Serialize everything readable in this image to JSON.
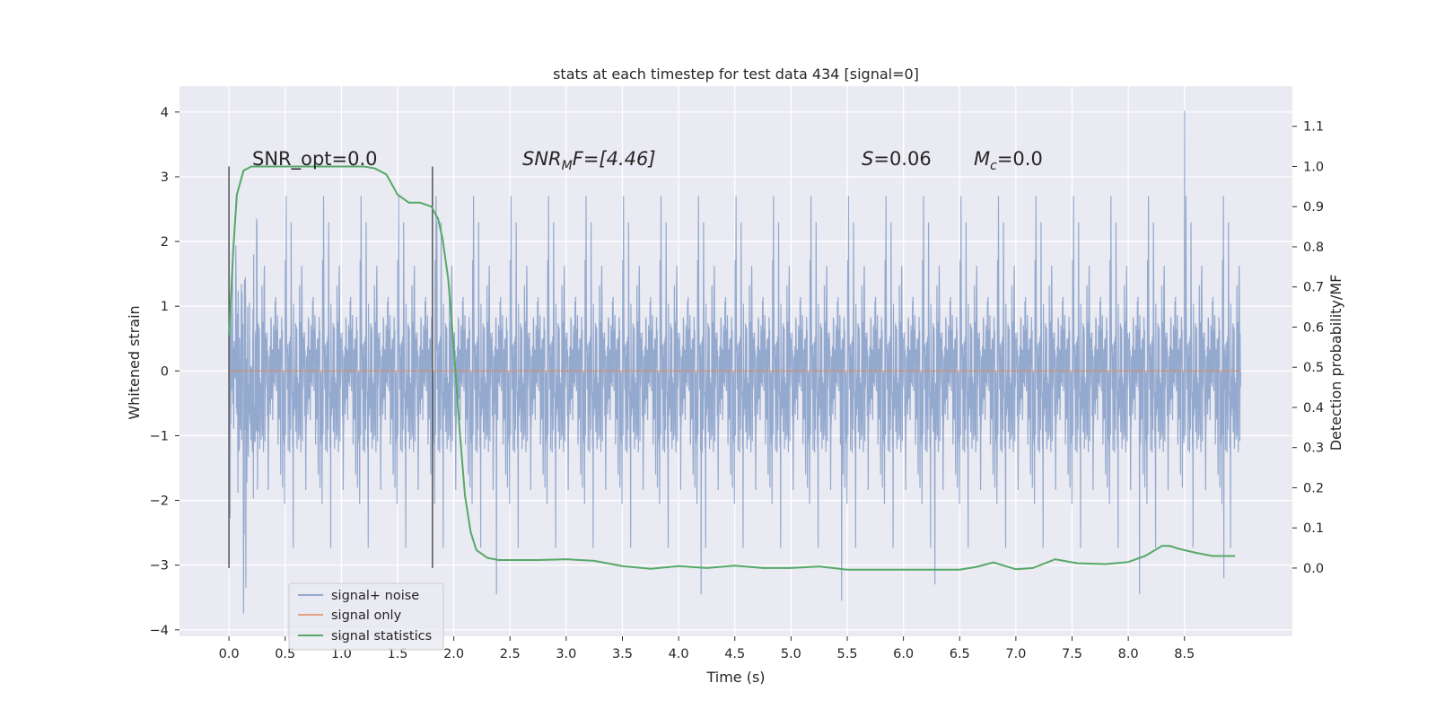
{
  "chart_data": {
    "type": "line",
    "title": "stats at each timestep for test data 434 [signal=0]",
    "xlabel": "Time (s)",
    "ylabel": "Whitened strain",
    "y2label": "Detection probability/MF",
    "xlim": [
      -0.44,
      9.46
    ],
    "ylim": [
      -4.1,
      4.4
    ],
    "y2lim": [
      -0.17,
      1.2
    ],
    "xticks": [
      0.0,
      0.5,
      1.0,
      1.5,
      2.0,
      2.5,
      3.0,
      3.5,
      4.0,
      4.5,
      5.0,
      5.5,
      6.0,
      6.5,
      7.0,
      7.5,
      8.0,
      8.5
    ],
    "xtick_labels": [
      "0.0",
      "0.5",
      "1.0",
      "1.5",
      "2.0",
      "2.5",
      "3.0",
      "3.5",
      "4.0",
      "4.5",
      "5.0",
      "5.5",
      "6.0",
      "6.5",
      "7.0",
      "7.5",
      "8.0",
      "8.5"
    ],
    "yticks": [
      -4,
      -3,
      -2,
      -1,
      0,
      1,
      2,
      3,
      4
    ],
    "ytick_labels": [
      "−4",
      "−3",
      "−2",
      "−1",
      "0",
      "1",
      "2",
      "3",
      "4"
    ],
    "y2ticks": [
      0.0,
      0.1,
      0.2,
      0.3,
      0.4,
      0.5,
      0.6,
      0.7,
      0.8,
      0.9,
      1.0,
      1.1
    ],
    "y2tick_labels": [
      "0.0",
      "0.1",
      "0.2",
      "0.3",
      "0.4",
      "0.5",
      "0.6",
      "0.7",
      "0.8",
      "0.9",
      "1.0",
      "1.1"
    ],
    "grid": true,
    "legend_position": "lower-left",
    "background": "#EAEAF2",
    "series": [
      {
        "name": "signal+ noise",
        "axis": "left",
        "color": "#4C72B0",
        "kind": "dense-noise",
        "x_range": [
          0.0,
          9.0
        ],
        "core_amplitude": 1.35,
        "extremes": [
          {
            "x": 0.13,
            "y": -3.75
          },
          {
            "x": 0.15,
            "y": -3.35
          },
          {
            "x": 1.85,
            "y": 2.3
          },
          {
            "x": 2.38,
            "y": -3.45
          },
          {
            "x": 4.2,
            "y": -3.45
          },
          {
            "x": 5.45,
            "y": -3.55
          },
          {
            "x": 6.28,
            "y": -3.3
          },
          {
            "x": 8.1,
            "y": -3.45
          },
          {
            "x": 8.5,
            "y": 4.02
          },
          {
            "x": 8.85,
            "y": -3.2
          }
        ]
      },
      {
        "name": "signal only",
        "axis": "left",
        "color": "#DD8452",
        "x": [
          0.0,
          9.0
        ],
        "y": [
          0.0,
          0.0
        ]
      },
      {
        "name": "signal statistics",
        "axis": "right",
        "color": "#55A868",
        "x": [
          0.0,
          0.04,
          0.07,
          0.13,
          0.2,
          0.3,
          0.5,
          0.8,
          1.0,
          1.2,
          1.3,
          1.4,
          1.5,
          1.6,
          1.7,
          1.8,
          1.86,
          1.9,
          1.95,
          2.0,
          2.05,
          2.1,
          2.15,
          2.2,
          2.3,
          2.4,
          2.5,
          2.75,
          3.0,
          3.25,
          3.5,
          3.75,
          4.0,
          4.25,
          4.5,
          4.75,
          5.0,
          5.25,
          5.5,
          5.75,
          6.0,
          6.25,
          6.5,
          6.65,
          6.8,
          7.0,
          7.15,
          7.35,
          7.55,
          7.8,
          8.0,
          8.15,
          8.3,
          8.37,
          8.45,
          8.6,
          8.75,
          8.9,
          8.95
        ],
        "y": [
          0.58,
          0.8,
          0.93,
          0.99,
          1.0,
          1.0,
          1.0,
          1.0,
          1.0,
          1.0,
          0.995,
          0.98,
          0.93,
          0.91,
          0.91,
          0.9,
          0.87,
          0.82,
          0.72,
          0.55,
          0.35,
          0.18,
          0.09,
          0.045,
          0.025,
          0.02,
          0.02,
          0.02,
          0.022,
          0.018,
          0.005,
          -0.002,
          0.005,
          0.0,
          0.006,
          0.0,
          0.0,
          0.004,
          -0.004,
          -0.004,
          -0.004,
          -0.004,
          -0.004,
          0.003,
          0.014,
          -0.003,
          0.0,
          0.022,
          0.012,
          0.01,
          0.015,
          0.03,
          0.055,
          0.055,
          0.048,
          0.038,
          0.03,
          0.03,
          0.03
        ]
      }
    ],
    "vlines": [
      0.0,
      1.81
    ],
    "annotations": {
      "snr_opt": "SNR_opt=0.0",
      "snr_mf_prefix": "SNR",
      "snr_mf_sub": "M",
      "snr_mf_rest": "F=[4.46]",
      "s_symbol": "S",
      "s_value": "=0.06",
      "mc_symbol": "M",
      "mc_sub": "c",
      "mc_value": "=0.0"
    }
  }
}
